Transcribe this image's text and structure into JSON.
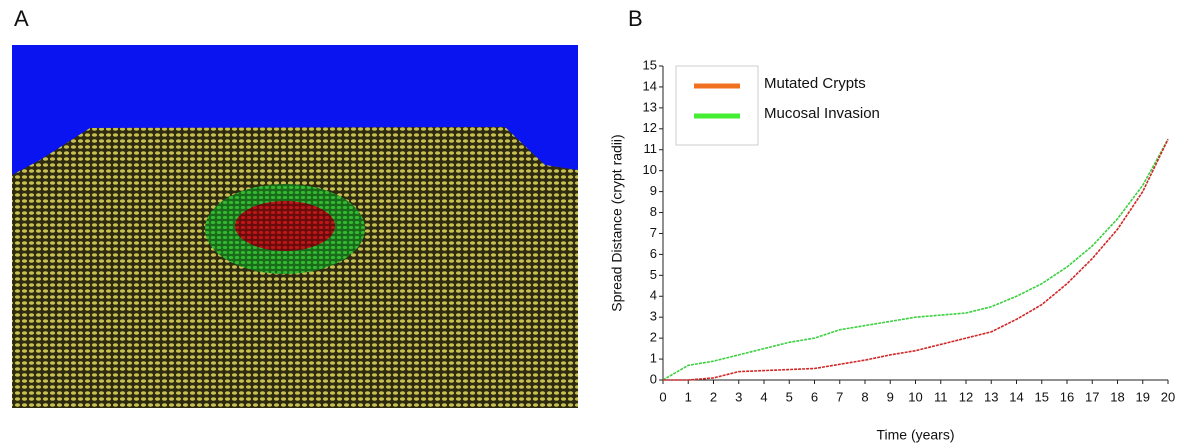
{
  "panels": {
    "a_label": "A",
    "b_label": "B"
  },
  "chart_data": {
    "type": "line",
    "xlabel": "Time (years)",
    "ylabel": "Spread Distance (crypt radii)",
    "x": [
      0,
      1,
      2,
      3,
      4,
      5,
      6,
      7,
      8,
      9,
      10,
      11,
      12,
      13,
      14,
      15,
      16,
      17,
      18,
      19,
      20
    ],
    "series": [
      {
        "name": "Mutated Crypts",
        "color": "#d02828",
        "legend_color": "#f07020",
        "values": [
          0,
          0,
          0.1,
          0.4,
          0.45,
          0.5,
          0.55,
          0.75,
          0.95,
          1.2,
          1.4,
          1.7,
          2.0,
          2.3,
          2.9,
          3.6,
          4.6,
          5.8,
          7.2,
          9.0,
          11.5
        ]
      },
      {
        "name": "Mucosal Invasion",
        "color": "#3cd040",
        "legend_color": "#44ee33",
        "values": [
          0,
          0.7,
          0.9,
          1.2,
          1.5,
          1.8,
          2.0,
          2.4,
          2.6,
          2.8,
          3.0,
          3.1,
          3.2,
          3.5,
          4.0,
          4.6,
          5.4,
          6.4,
          7.7,
          9.3,
          11.5
        ]
      }
    ],
    "xlim": [
      0,
      20
    ],
    "xticks": [
      0,
      1,
      2,
      3,
      4,
      5,
      6,
      7,
      8,
      9,
      10,
      11,
      12,
      13,
      14,
      15,
      16,
      17,
      18,
      19,
      20
    ],
    "ylim": [
      0,
      15
    ],
    "yticks": [
      0,
      1,
      2,
      3,
      4,
      5,
      6,
      7,
      8,
      9,
      10,
      11,
      12,
      13,
      14,
      15
    ]
  }
}
